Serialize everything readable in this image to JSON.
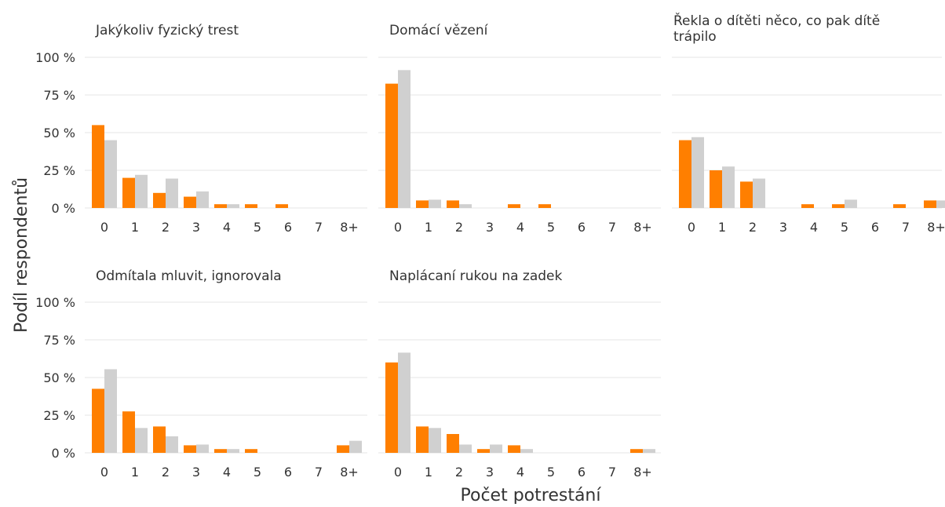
{
  "figure": {
    "ylabel": "Podíl respondentů",
    "xlabel": "Počet potrestání"
  },
  "colors": {
    "series_a": "#ff7f00",
    "series_b": "#d0d0d0",
    "grid": "#ebebeb",
    "text": "#333333"
  },
  "chart_data": {
    "type": "bar",
    "layout": "faceted-grid",
    "categories": [
      "0",
      "1",
      "2",
      "3",
      "4",
      "5",
      "6",
      "7",
      "8+"
    ],
    "y_tick_labels": [
      "0 %",
      "25 %",
      "50 %",
      "75 %",
      "100 %"
    ],
    "ylim": [
      0,
      100
    ],
    "grid": true,
    "facets": [
      {
        "title": "Jakýkoliv fyzický trest",
        "series": [
          {
            "values": [
              55,
              20,
              10,
              7.5,
              2.5,
              2.5,
              2.5,
              0,
              0
            ]
          },
          {
            "values": [
              45,
              22,
              19.5,
              11,
              2.5,
              0,
              0,
              0,
              0
            ]
          }
        ]
      },
      {
        "title": "Domácí vězení",
        "series": [
          {
            "values": [
              82.5,
              5,
              5,
              0,
              2.5,
              2.5,
              0,
              0,
              0
            ]
          },
          {
            "values": [
              91.5,
              5.5,
              2.5,
              0,
              0,
              0,
              0,
              0,
              0
            ]
          }
        ]
      },
      {
        "title": "Řekla o dítěti něco, co pak dítě trápilo",
        "series": [
          {
            "values": [
              45,
              25,
              17.5,
              0,
              2.5,
              2.5,
              0,
              2.5,
              5
            ]
          },
          {
            "values": [
              47,
              27.5,
              19.5,
              0,
              0,
              5.5,
              0,
              0,
              5
            ]
          }
        ]
      },
      {
        "title": "Odmítala mluvit, ignorovala",
        "series": [
          {
            "values": [
              42.5,
              27.5,
              17.5,
              5,
              2.5,
              2.5,
              0,
              0,
              5
            ]
          },
          {
            "values": [
              55.5,
              16.5,
              11,
              5.5,
              2.5,
              0,
              0,
              0,
              8
            ]
          }
        ]
      },
      {
        "title": "Naplácaní rukou na zadek",
        "series": [
          {
            "values": [
              60,
              17.5,
              12.5,
              2.5,
              5,
              0,
              0,
              0,
              2.5
            ]
          },
          {
            "values": [
              66.5,
              16.5,
              5.5,
              5.5,
              2.5,
              0,
              0,
              0,
              2.5
            ]
          }
        ]
      }
    ]
  }
}
